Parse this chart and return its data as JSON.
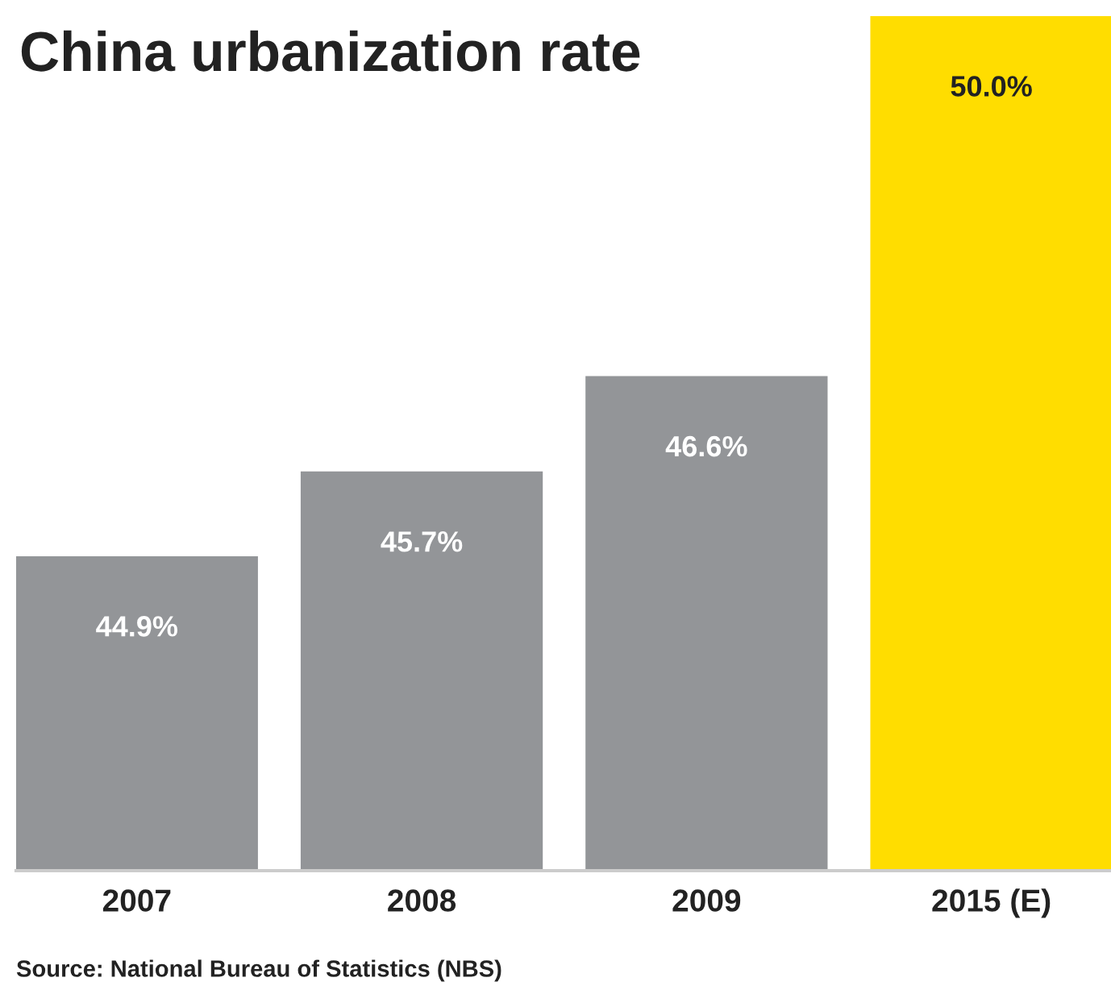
{
  "chart_data": {
    "type": "bar",
    "title": "China urbanization rate",
    "categories": [
      "2007",
      "2008",
      "2009",
      "2015 (E)"
    ],
    "values": [
      44.9,
      45.7,
      46.6,
      50.0
    ],
    "colors": [
      "#939598",
      "#939598",
      "#939598",
      "#ffdd00"
    ],
    "value_labels": [
      "44.9%",
      "45.7%",
      "46.6%",
      "50.0%"
    ],
    "ylim": [
      41.93,
      50.0
    ],
    "tick_labels": "x",
    "grid": false,
    "annotations": [
      "Source: National Bureau of Statistics (NBS)"
    ]
  }
}
